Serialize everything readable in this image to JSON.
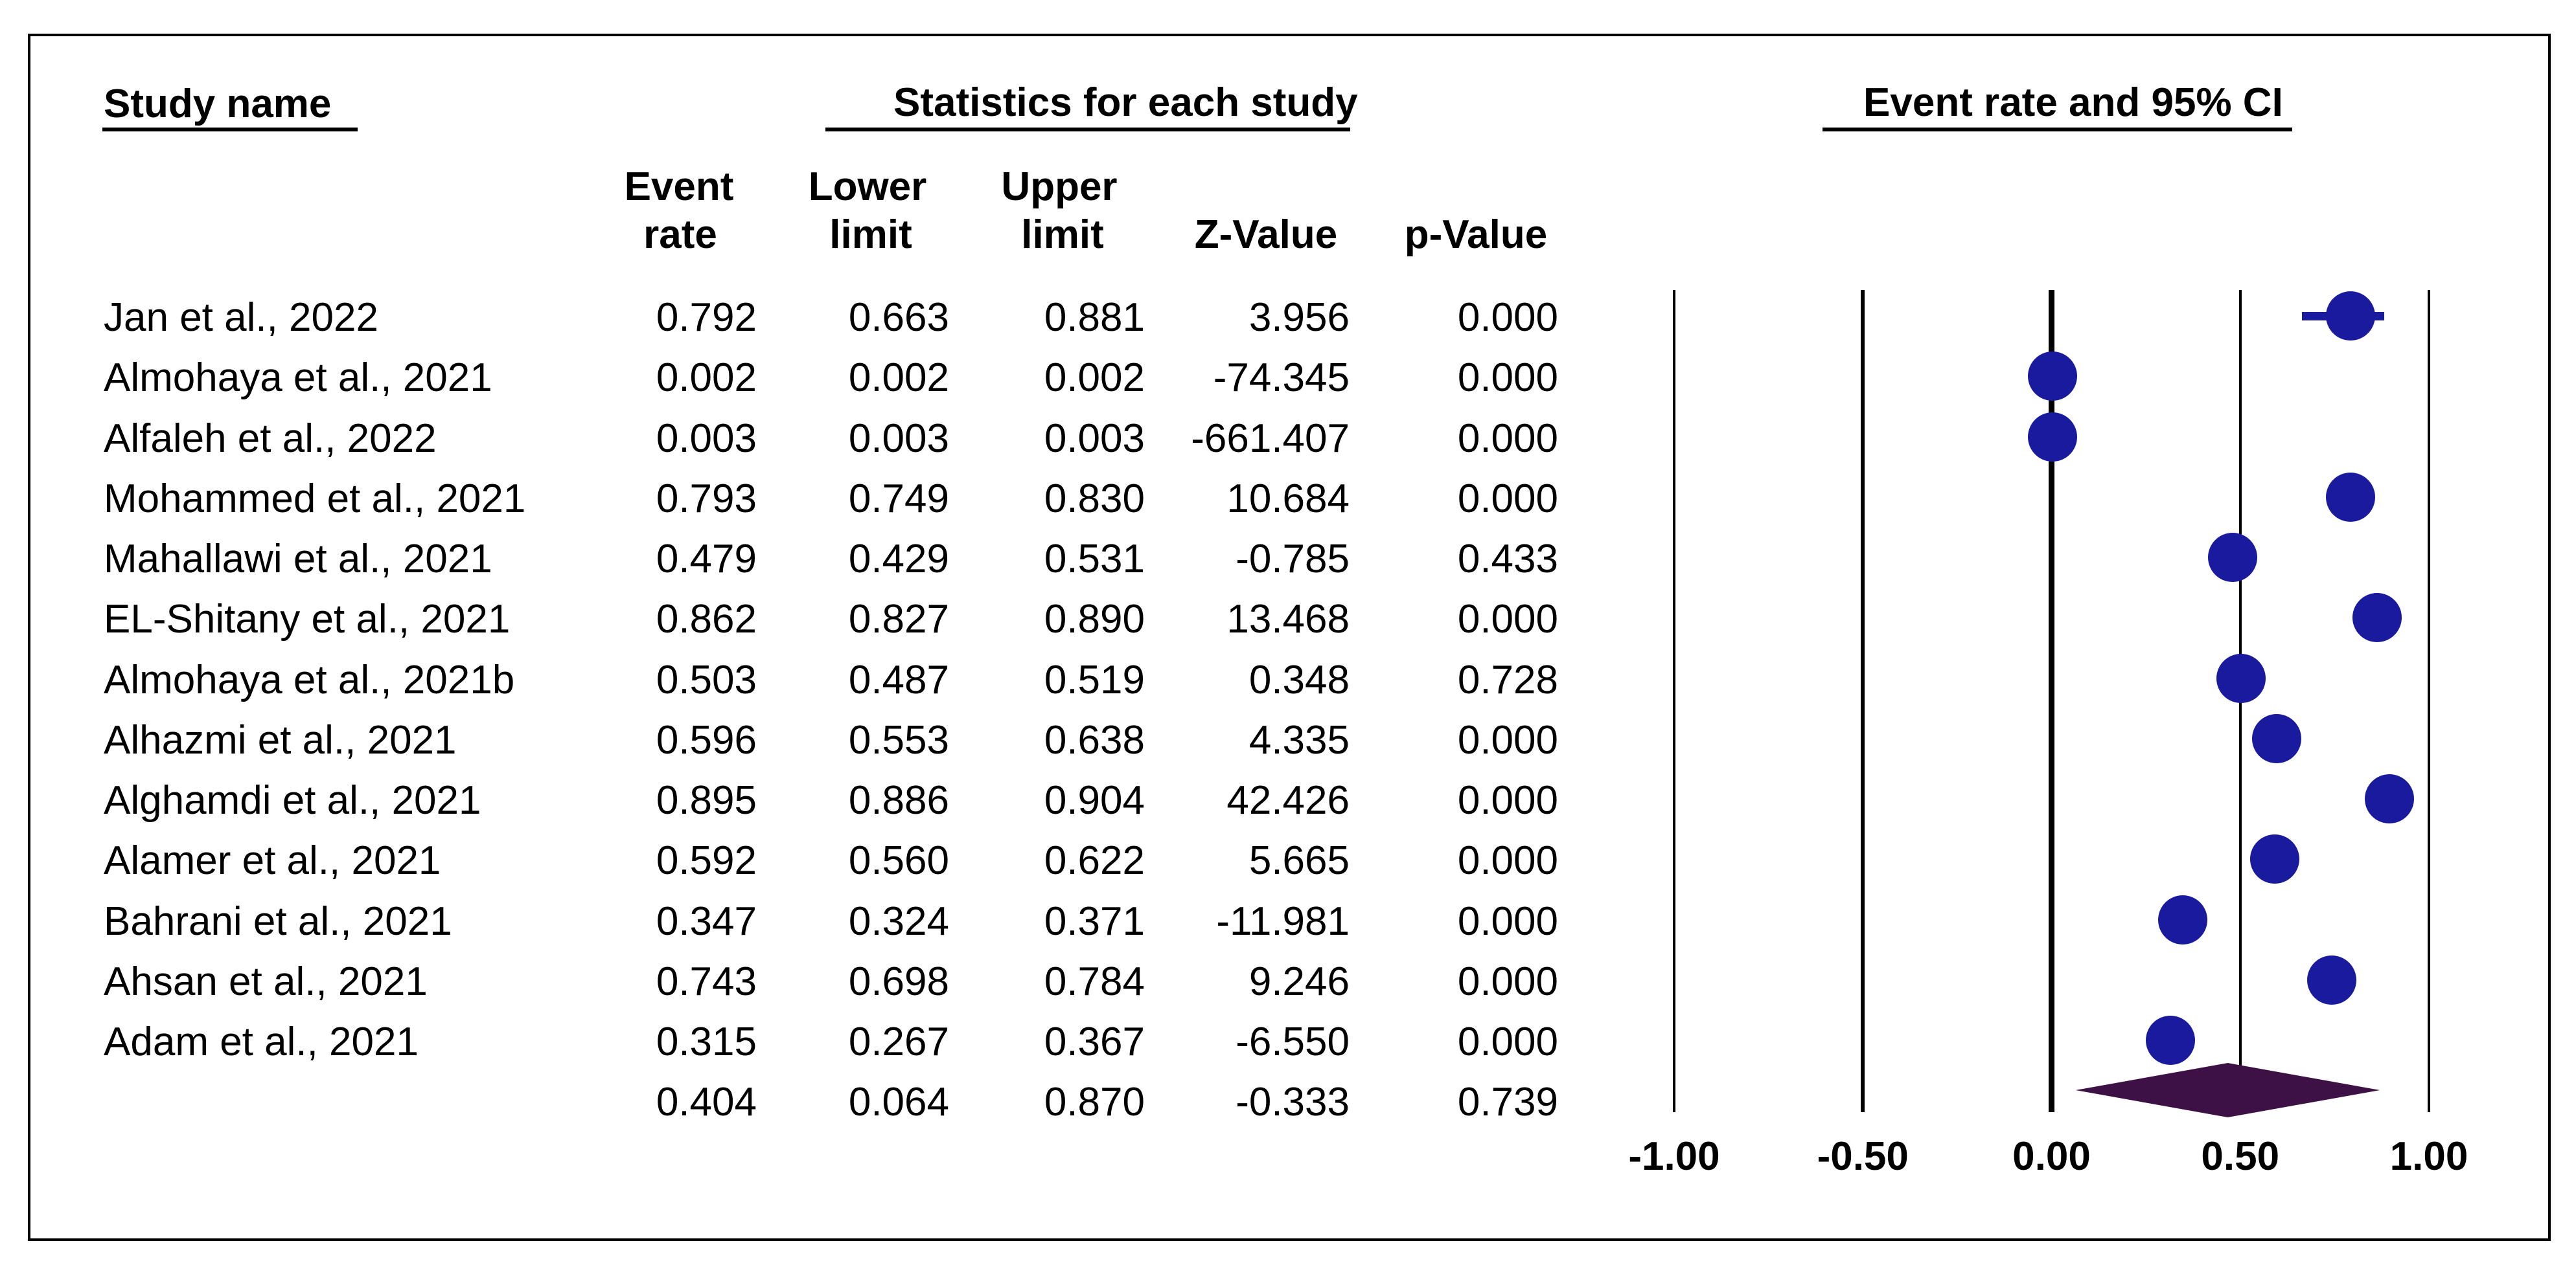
{
  "header": {
    "study_col_title": "Study name",
    "stats_group_title": "Statistics for each study",
    "plot_group_title": "Event rate and 95% CI"
  },
  "stats_columns": {
    "event": {
      "line1": "Event",
      "line2": "rate"
    },
    "lower": {
      "line1": "Lower",
      "line2": "limit"
    },
    "upper": {
      "line1": "Upper",
      "line2": "limit"
    },
    "z": {
      "line2": "Z-Value"
    },
    "p": {
      "line2": "p-Value"
    }
  },
  "colors": {
    "background": "#ffffff",
    "text": "#000000",
    "border": "#000000",
    "marker": "#1a1a9e",
    "diamond": "#3d1145"
  },
  "chart_data": {
    "type": "scatter",
    "title": "Event rate and 95% CI",
    "xlabel": "Event rate",
    "x_axis": {
      "range": [
        -1.0,
        1.0
      ],
      "ticks": [
        "-1.00",
        "-0.50",
        "0.00",
        "0.50",
        "1.00"
      ],
      "zero_line_emphasis": true,
      "grid": "vertical"
    },
    "studies": [
      {
        "name": "Jan et al., 2022",
        "event_rate": "0.792",
        "lower": "0.663",
        "upper": "0.881",
        "z": "3.956",
        "p": "0.000"
      },
      {
        "name": "Almohaya et al., 2021",
        "event_rate": "0.002",
        "lower": "0.002",
        "upper": "0.002",
        "z": "-74.345",
        "p": "0.000"
      },
      {
        "name": "Alfaleh et al., 2022",
        "event_rate": "0.003",
        "lower": "0.003",
        "upper": "0.003",
        "z": "-661.407",
        "p": "0.000"
      },
      {
        "name": "Mohammed et al., 2021",
        "event_rate": "0.793",
        "lower": "0.749",
        "upper": "0.830",
        "z": "10.684",
        "p": "0.000"
      },
      {
        "name": "Mahallawi et al., 2021",
        "event_rate": "0.479",
        "lower": "0.429",
        "upper": "0.531",
        "z": "-0.785",
        "p": "0.433"
      },
      {
        "name": "EL-Shitany et al., 2021",
        "event_rate": "0.862",
        "lower": "0.827",
        "upper": "0.890",
        "z": "13.468",
        "p": "0.000"
      },
      {
        "name": "Almohaya et al., 2021b",
        "event_rate": "0.503",
        "lower": "0.487",
        "upper": "0.519",
        "z": "0.348",
        "p": "0.728"
      },
      {
        "name": "Alhazmi et al., 2021",
        "event_rate": "0.596",
        "lower": "0.553",
        "upper": "0.638",
        "z": "4.335",
        "p": "0.000"
      },
      {
        "name": "Alghamdi et al., 2021",
        "event_rate": "0.895",
        "lower": "0.886",
        "upper": "0.904",
        "z": "42.426",
        "p": "0.000"
      },
      {
        "name": "Alamer et al., 2021",
        "event_rate": "0.592",
        "lower": "0.560",
        "upper": "0.622",
        "z": "5.665",
        "p": "0.000"
      },
      {
        "name": "Bahrani et al., 2021",
        "event_rate": "0.347",
        "lower": "0.324",
        "upper": "0.371",
        "z": "-11.981",
        "p": "0.000"
      },
      {
        "name": "Ahsan et al., 2021",
        "event_rate": "0.743",
        "lower": "0.698",
        "upper": "0.784",
        "z": "9.246",
        "p": "0.000"
      },
      {
        "name": "Adam et al., 2021",
        "event_rate": "0.315",
        "lower": "0.267",
        "upper": "0.367",
        "z": "-6.550",
        "p": "0.000"
      }
    ],
    "summary": {
      "event_rate": "0.404",
      "lower": "0.064",
      "upper": "0.870",
      "z": "-0.333",
      "p": "0.739"
    }
  }
}
